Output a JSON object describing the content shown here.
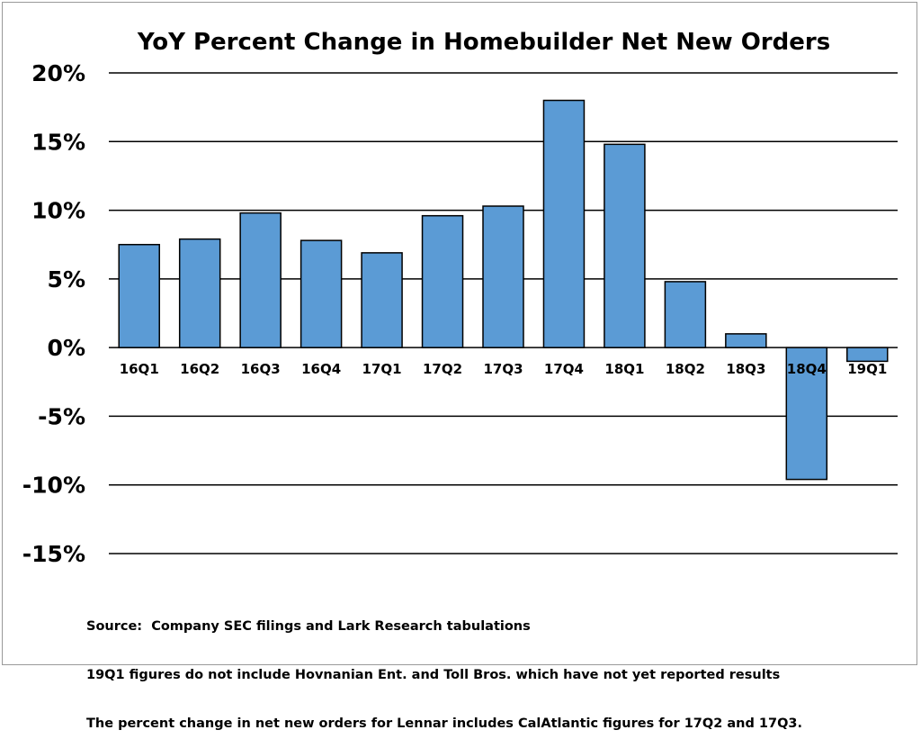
{
  "chart_data": {
    "type": "bar",
    "title": "YoY Percent Change in Homebuilder Net New Orders",
    "xlabel": "",
    "ylabel": "",
    "categories": [
      "16Q1",
      "16Q2",
      "16Q3",
      "16Q4",
      "17Q1",
      "17Q2",
      "17Q3",
      "17Q4",
      "18Q1",
      "18Q2",
      "18Q3",
      "18Q4",
      "19Q1"
    ],
    "values": [
      7.5,
      7.9,
      9.8,
      7.8,
      6.9,
      9.6,
      10.3,
      18.0,
      14.8,
      4.8,
      1.0,
      -9.6,
      -1.0
    ],
    "ylim": [
      -15,
      20
    ],
    "yticks": [
      20,
      15,
      10,
      5,
      0,
      -5,
      -10,
      -15
    ],
    "ytick_labels": [
      "20%",
      "15%",
      "10%",
      "5%",
      "0%",
      "-5%",
      "-10%",
      "-15%"
    ],
    "grid": true,
    "legend": "none",
    "bar_color": "#5b9bd5"
  },
  "notes": [
    "Source:  Company SEC filings and Lark Research tabulations",
    "19Q1 figures do not include Hovnanian Ent. and Toll Bros. which have not yet reported results",
    "The percent change in net new orders for Lennar includes CalAtlantic figures for 17Q2 and 17Q3."
  ]
}
